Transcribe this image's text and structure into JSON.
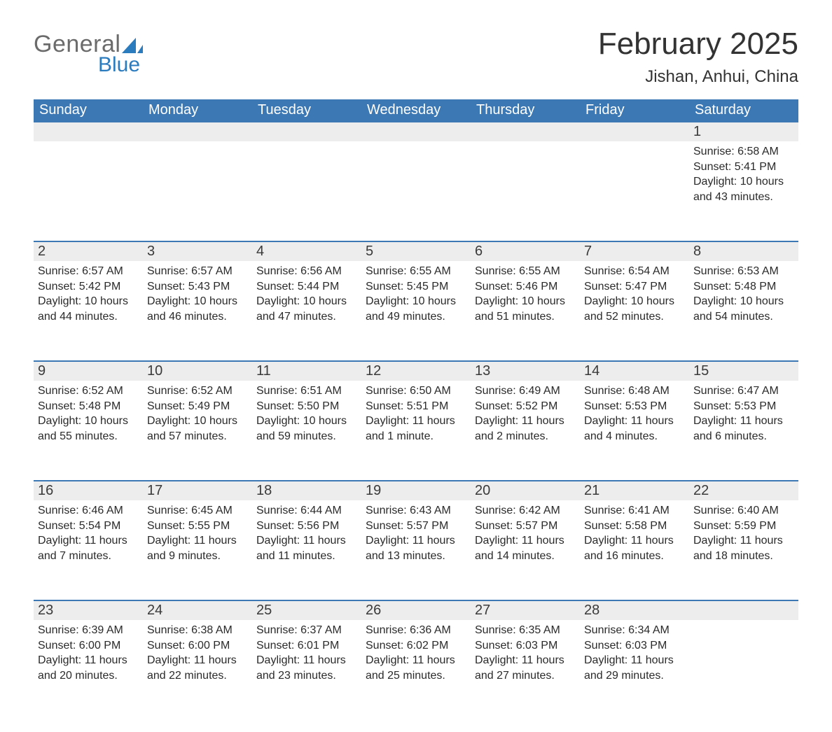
{
  "logo": {
    "word1": "General",
    "word2": "Blue"
  },
  "title": "February 2025",
  "location": "Jishan, Anhui, China",
  "colors": {
    "header_blue": "#3c78b4",
    "row_gray": "#ededed",
    "border_blue": "#3c78b4",
    "logo_gray": "#6b6b6b",
    "logo_blue": "#2b7bbf",
    "background": "#ffffff",
    "text": "#222222"
  },
  "weekdays": [
    "Sunday",
    "Monday",
    "Tuesday",
    "Wednesday",
    "Thursday",
    "Friday",
    "Saturday"
  ],
  "weeks": [
    {
      "days": [
        {
          "num": "",
          "sunrise": "",
          "sunset": "",
          "daylight": ""
        },
        {
          "num": "",
          "sunrise": "",
          "sunset": "",
          "daylight": ""
        },
        {
          "num": "",
          "sunrise": "",
          "sunset": "",
          "daylight": ""
        },
        {
          "num": "",
          "sunrise": "",
          "sunset": "",
          "daylight": ""
        },
        {
          "num": "",
          "sunrise": "",
          "sunset": "",
          "daylight": ""
        },
        {
          "num": "",
          "sunrise": "",
          "sunset": "",
          "daylight": ""
        },
        {
          "num": "1",
          "sunrise": "Sunrise: 6:58 AM",
          "sunset": "Sunset: 5:41 PM",
          "daylight": "Daylight: 10 hours and 43 minutes."
        }
      ]
    },
    {
      "days": [
        {
          "num": "2",
          "sunrise": "Sunrise: 6:57 AM",
          "sunset": "Sunset: 5:42 PM",
          "daylight": "Daylight: 10 hours and 44 minutes."
        },
        {
          "num": "3",
          "sunrise": "Sunrise: 6:57 AM",
          "sunset": "Sunset: 5:43 PM",
          "daylight": "Daylight: 10 hours and 46 minutes."
        },
        {
          "num": "4",
          "sunrise": "Sunrise: 6:56 AM",
          "sunset": "Sunset: 5:44 PM",
          "daylight": "Daylight: 10 hours and 47 minutes."
        },
        {
          "num": "5",
          "sunrise": "Sunrise: 6:55 AM",
          "sunset": "Sunset: 5:45 PM",
          "daylight": "Daylight: 10 hours and 49 minutes."
        },
        {
          "num": "6",
          "sunrise": "Sunrise: 6:55 AM",
          "sunset": "Sunset: 5:46 PM",
          "daylight": "Daylight: 10 hours and 51 minutes."
        },
        {
          "num": "7",
          "sunrise": "Sunrise: 6:54 AM",
          "sunset": "Sunset: 5:47 PM",
          "daylight": "Daylight: 10 hours and 52 minutes."
        },
        {
          "num": "8",
          "sunrise": "Sunrise: 6:53 AM",
          "sunset": "Sunset: 5:48 PM",
          "daylight": "Daylight: 10 hours and 54 minutes."
        }
      ]
    },
    {
      "days": [
        {
          "num": "9",
          "sunrise": "Sunrise: 6:52 AM",
          "sunset": "Sunset: 5:48 PM",
          "daylight": "Daylight: 10 hours and 55 minutes."
        },
        {
          "num": "10",
          "sunrise": "Sunrise: 6:52 AM",
          "sunset": "Sunset: 5:49 PM",
          "daylight": "Daylight: 10 hours and 57 minutes."
        },
        {
          "num": "11",
          "sunrise": "Sunrise: 6:51 AM",
          "sunset": "Sunset: 5:50 PM",
          "daylight": "Daylight: 10 hours and 59 minutes."
        },
        {
          "num": "12",
          "sunrise": "Sunrise: 6:50 AM",
          "sunset": "Sunset: 5:51 PM",
          "daylight": "Daylight: 11 hours and 1 minute."
        },
        {
          "num": "13",
          "sunrise": "Sunrise: 6:49 AM",
          "sunset": "Sunset: 5:52 PM",
          "daylight": "Daylight: 11 hours and 2 minutes."
        },
        {
          "num": "14",
          "sunrise": "Sunrise: 6:48 AM",
          "sunset": "Sunset: 5:53 PM",
          "daylight": "Daylight: 11 hours and 4 minutes."
        },
        {
          "num": "15",
          "sunrise": "Sunrise: 6:47 AM",
          "sunset": "Sunset: 5:53 PM",
          "daylight": "Daylight: 11 hours and 6 minutes."
        }
      ]
    },
    {
      "days": [
        {
          "num": "16",
          "sunrise": "Sunrise: 6:46 AM",
          "sunset": "Sunset: 5:54 PM",
          "daylight": "Daylight: 11 hours and 7 minutes."
        },
        {
          "num": "17",
          "sunrise": "Sunrise: 6:45 AM",
          "sunset": "Sunset: 5:55 PM",
          "daylight": "Daylight: 11 hours and 9 minutes."
        },
        {
          "num": "18",
          "sunrise": "Sunrise: 6:44 AM",
          "sunset": "Sunset: 5:56 PM",
          "daylight": "Daylight: 11 hours and 11 minutes."
        },
        {
          "num": "19",
          "sunrise": "Sunrise: 6:43 AM",
          "sunset": "Sunset: 5:57 PM",
          "daylight": "Daylight: 11 hours and 13 minutes."
        },
        {
          "num": "20",
          "sunrise": "Sunrise: 6:42 AM",
          "sunset": "Sunset: 5:57 PM",
          "daylight": "Daylight: 11 hours and 14 minutes."
        },
        {
          "num": "21",
          "sunrise": "Sunrise: 6:41 AM",
          "sunset": "Sunset: 5:58 PM",
          "daylight": "Daylight: 11 hours and 16 minutes."
        },
        {
          "num": "22",
          "sunrise": "Sunrise: 6:40 AM",
          "sunset": "Sunset: 5:59 PM",
          "daylight": "Daylight: 11 hours and 18 minutes."
        }
      ]
    },
    {
      "days": [
        {
          "num": "23",
          "sunrise": "Sunrise: 6:39 AM",
          "sunset": "Sunset: 6:00 PM",
          "daylight": "Daylight: 11 hours and 20 minutes."
        },
        {
          "num": "24",
          "sunrise": "Sunrise: 6:38 AM",
          "sunset": "Sunset: 6:00 PM",
          "daylight": "Daylight: 11 hours and 22 minutes."
        },
        {
          "num": "25",
          "sunrise": "Sunrise: 6:37 AM",
          "sunset": "Sunset: 6:01 PM",
          "daylight": "Daylight: 11 hours and 23 minutes."
        },
        {
          "num": "26",
          "sunrise": "Sunrise: 6:36 AM",
          "sunset": "Sunset: 6:02 PM",
          "daylight": "Daylight: 11 hours and 25 minutes."
        },
        {
          "num": "27",
          "sunrise": "Sunrise: 6:35 AM",
          "sunset": "Sunset: 6:03 PM",
          "daylight": "Daylight: 11 hours and 27 minutes."
        },
        {
          "num": "28",
          "sunrise": "Sunrise: 6:34 AM",
          "sunset": "Sunset: 6:03 PM",
          "daylight": "Daylight: 11 hours and 29 minutes."
        },
        {
          "num": "",
          "sunrise": "",
          "sunset": "",
          "daylight": ""
        }
      ]
    }
  ]
}
